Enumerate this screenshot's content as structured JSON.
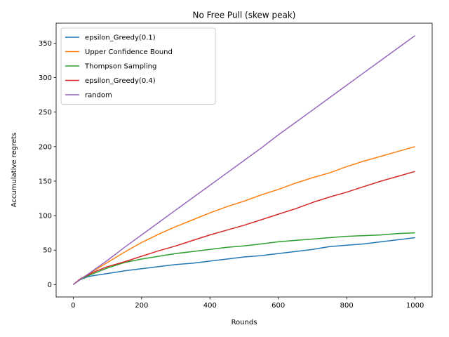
{
  "chart_data": {
    "type": "line",
    "title": "No Free Pull (skew peak)",
    "xlabel": "Rounds",
    "ylabel": "Accumulative regrets",
    "xlim": [
      -50,
      1050
    ],
    "ylim": [
      -18,
      379
    ],
    "xticks": [
      0,
      200,
      400,
      600,
      800,
      1000
    ],
    "yticks": [
      0,
      50,
      100,
      150,
      200,
      250,
      300,
      350
    ],
    "grid": false,
    "legend_position": "top-left",
    "series": [
      {
        "name": "epsilon_Greedy(0.1)",
        "color": "#1f77b4",
        "x": [
          0,
          20,
          40,
          60,
          100,
          150,
          200,
          250,
          300,
          350,
          400,
          450,
          500,
          550,
          600,
          650,
          700,
          750,
          800,
          850,
          900,
          950,
          1000
        ],
        "y": [
          0,
          7,
          11,
          13,
          16,
          20,
          23,
          26,
          29,
          31,
          34,
          37,
          40,
          42,
          45,
          48,
          51,
          55,
          57,
          59,
          62,
          65,
          68
        ]
      },
      {
        "name": "Upper Confidence Bound",
        "color": "#ff7f0e",
        "x": [
          0,
          20,
          40,
          60,
          100,
          150,
          200,
          250,
          300,
          350,
          400,
          450,
          500,
          550,
          600,
          650,
          700,
          750,
          800,
          850,
          900,
          950,
          1000
        ],
        "y": [
          0,
          8,
          14,
          20,
          32,
          47,
          61,
          73,
          84,
          94,
          104,
          113,
          121,
          130,
          138,
          147,
          155,
          162,
          171,
          179,
          186,
          193,
          200
        ]
      },
      {
        "name": "Thompson Sampling",
        "color": "#2ca02c",
        "x": [
          0,
          20,
          40,
          60,
          100,
          150,
          200,
          250,
          300,
          350,
          400,
          450,
          500,
          550,
          600,
          650,
          700,
          750,
          800,
          850,
          900,
          950,
          1000
        ],
        "y": [
          0,
          7,
          12,
          16,
          24,
          32,
          37,
          41,
          45,
          48,
          51,
          54,
          56,
          59,
          62,
          64,
          66,
          68,
          70,
          71,
          72,
          74,
          75
        ]
      },
      {
        "name": "epsilon_Greedy(0.4)",
        "color": "#d62728",
        "x": [
          0,
          20,
          40,
          60,
          100,
          150,
          200,
          250,
          300,
          350,
          400,
          450,
          500,
          550,
          600,
          650,
          700,
          750,
          800,
          850,
          900,
          950,
          1000
        ],
        "y": [
          0,
          8,
          13,
          18,
          26,
          33,
          41,
          49,
          56,
          64,
          72,
          79,
          86,
          94,
          102,
          110,
          119,
          127,
          134,
          142,
          150,
          157,
          164
        ]
      },
      {
        "name": "random",
        "color": "#9467bd",
        "x": [
          0,
          20,
          40,
          60,
          100,
          150,
          200,
          250,
          300,
          350,
          400,
          450,
          500,
          550,
          600,
          650,
          700,
          750,
          800,
          850,
          900,
          950,
          1000
        ],
        "y": [
          0,
          7,
          14,
          21,
          35,
          54,
          72,
          90,
          108,
          126,
          144,
          162,
          180,
          198,
          217,
          235,
          253,
          271,
          289,
          307,
          325,
          343,
          361
        ]
      }
    ]
  }
}
